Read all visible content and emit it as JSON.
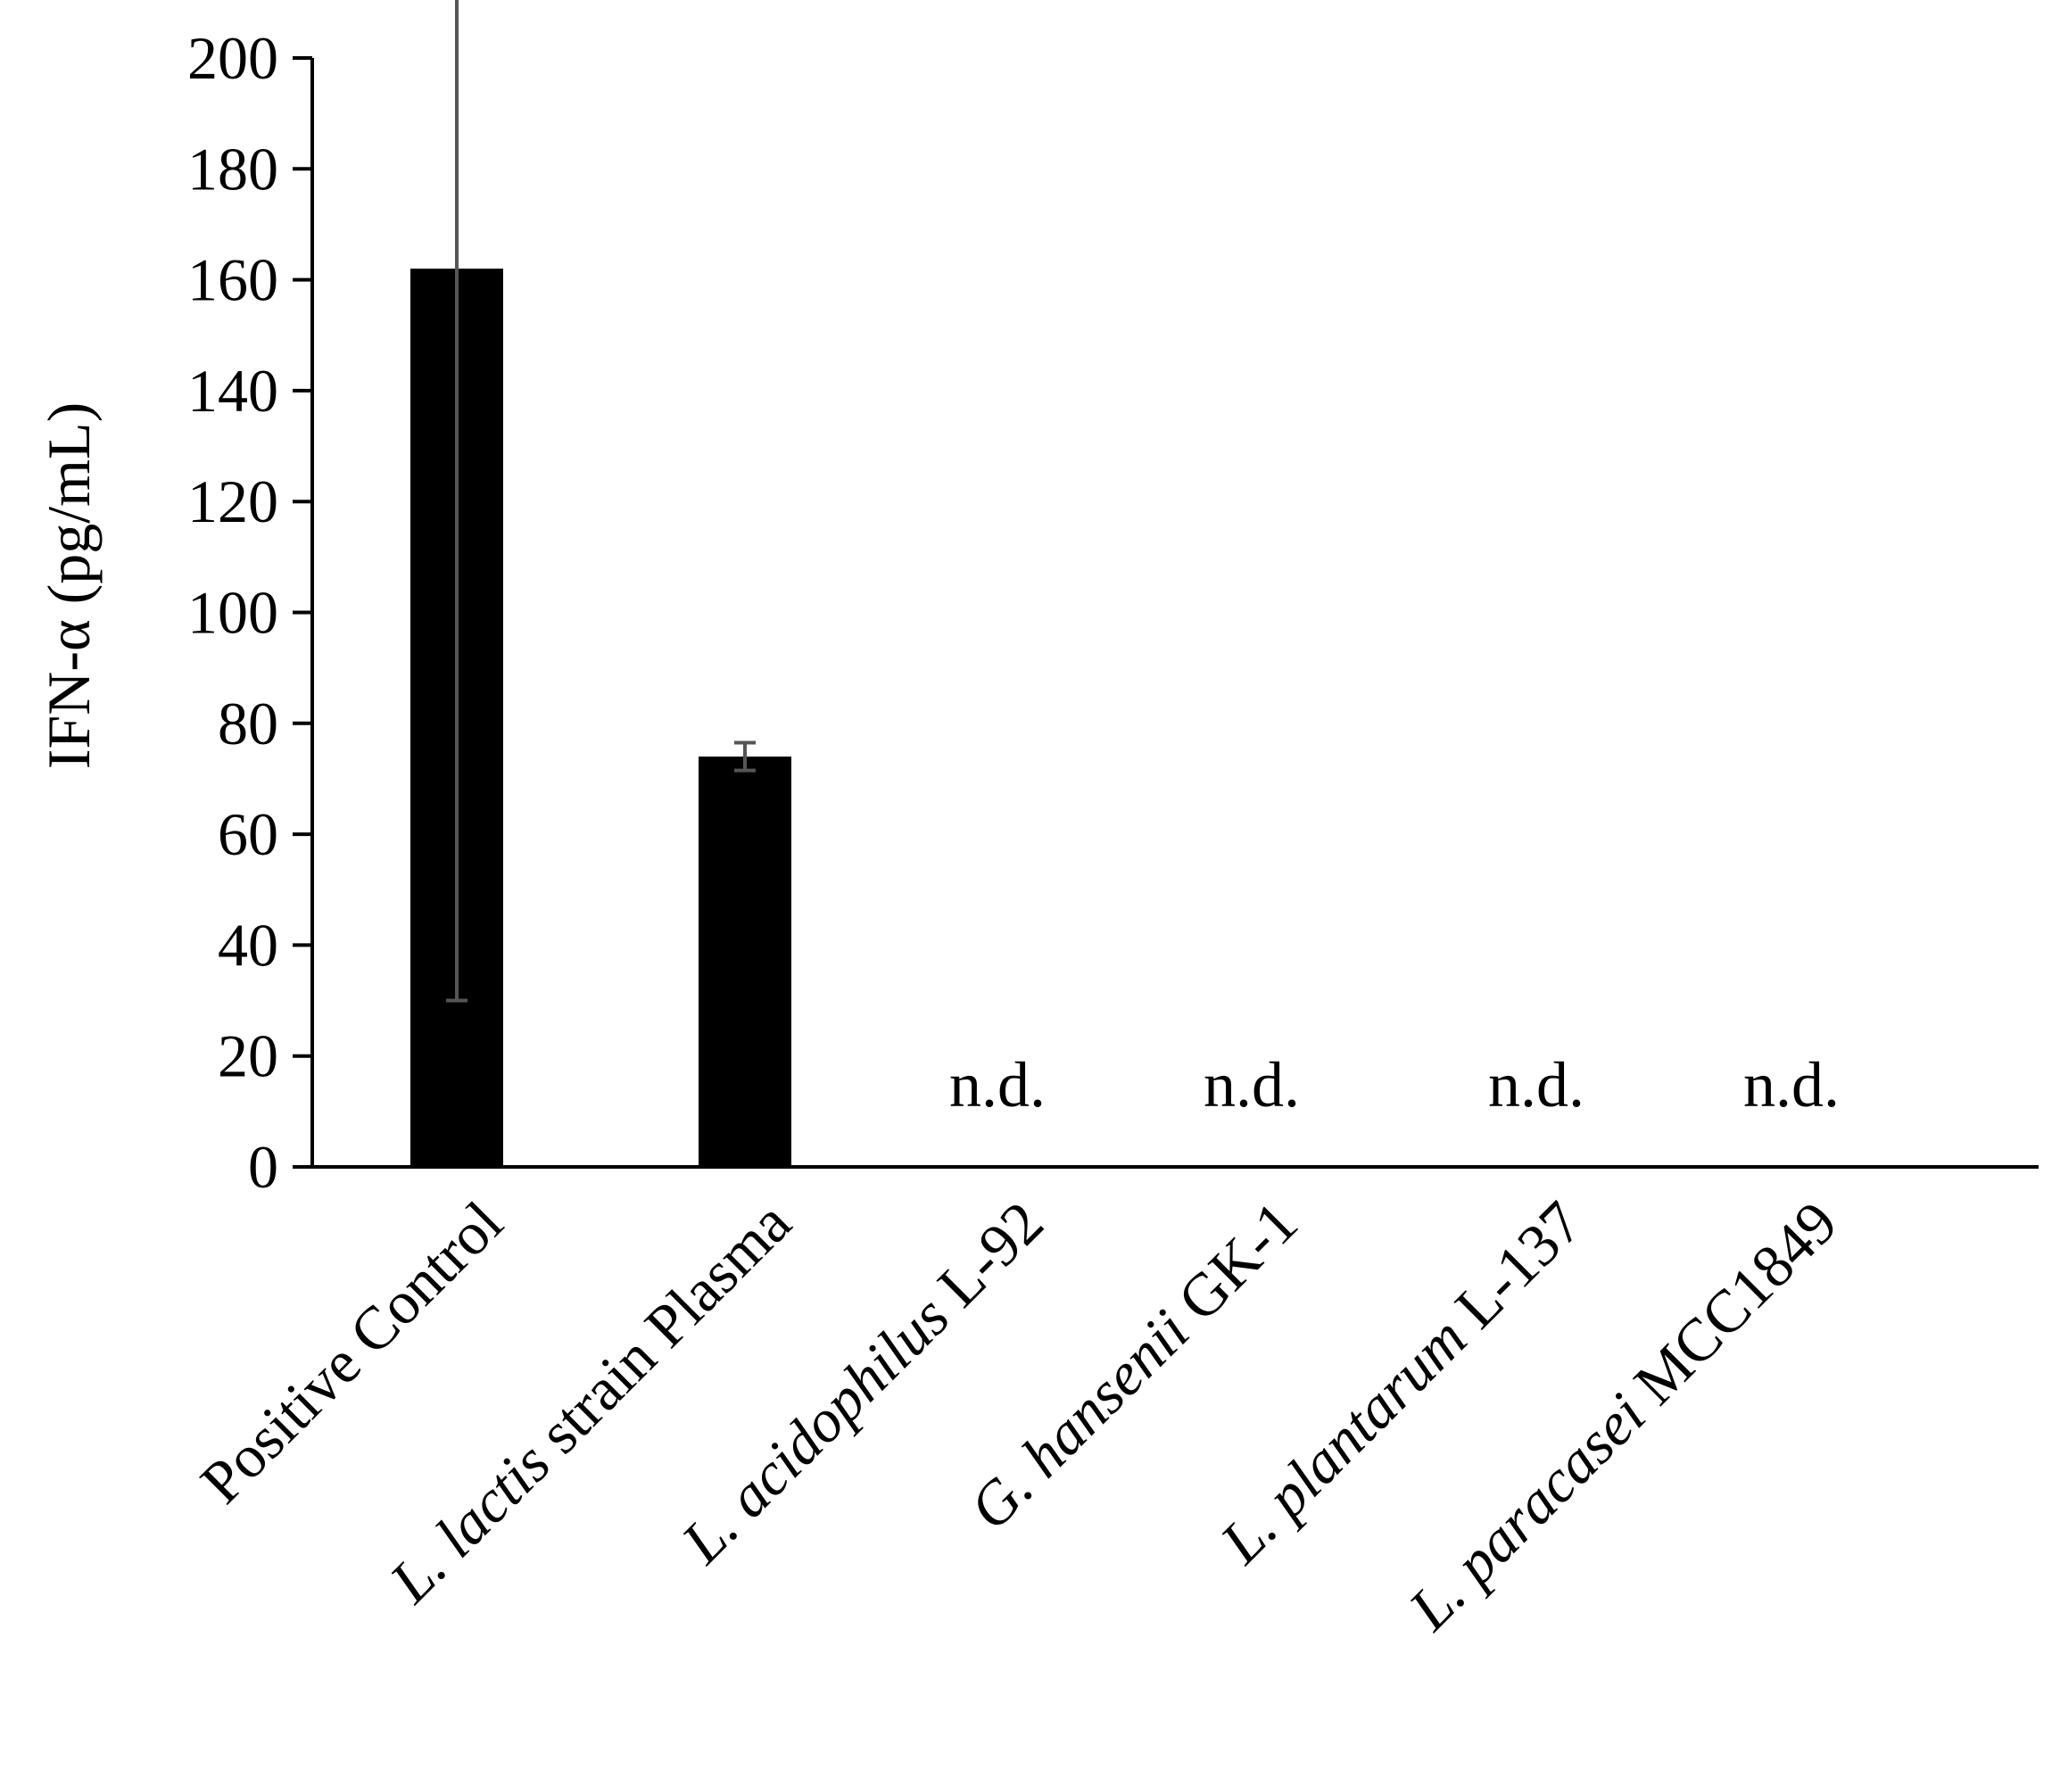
{
  "chart_data": {
    "type": "bar",
    "ylabel": "IFN-α (pg/mL)",
    "ylim": [
      0,
      200
    ],
    "yticks": [
      0,
      20,
      40,
      60,
      80,
      100,
      120,
      140,
      160,
      180,
      200
    ],
    "grid": false,
    "bar_color": "#000000",
    "errorbar_color": "#555555",
    "categories": [
      {
        "italic": "",
        "rest": "Positive Control"
      },
      {
        "italic": "L. lactis",
        "rest": " strain Plasma"
      },
      {
        "italic": "L. acidophilus",
        "rest": " L-92"
      },
      {
        "italic": "G. hansenii",
        "rest": " GK-1"
      },
      {
        "italic": "L. plantarum",
        "rest": " L-137"
      },
      {
        "italic": "L. paracasei",
        "rest": " MCC1849"
      }
    ],
    "values": [
      162,
      74,
      null,
      null,
      null,
      null
    ],
    "errors": [
      132,
      2.5,
      null,
      null,
      null,
      null
    ],
    "annotations": [
      "",
      "",
      "n.d.",
      "n.d.",
      "n.d.",
      "n.d."
    ]
  }
}
